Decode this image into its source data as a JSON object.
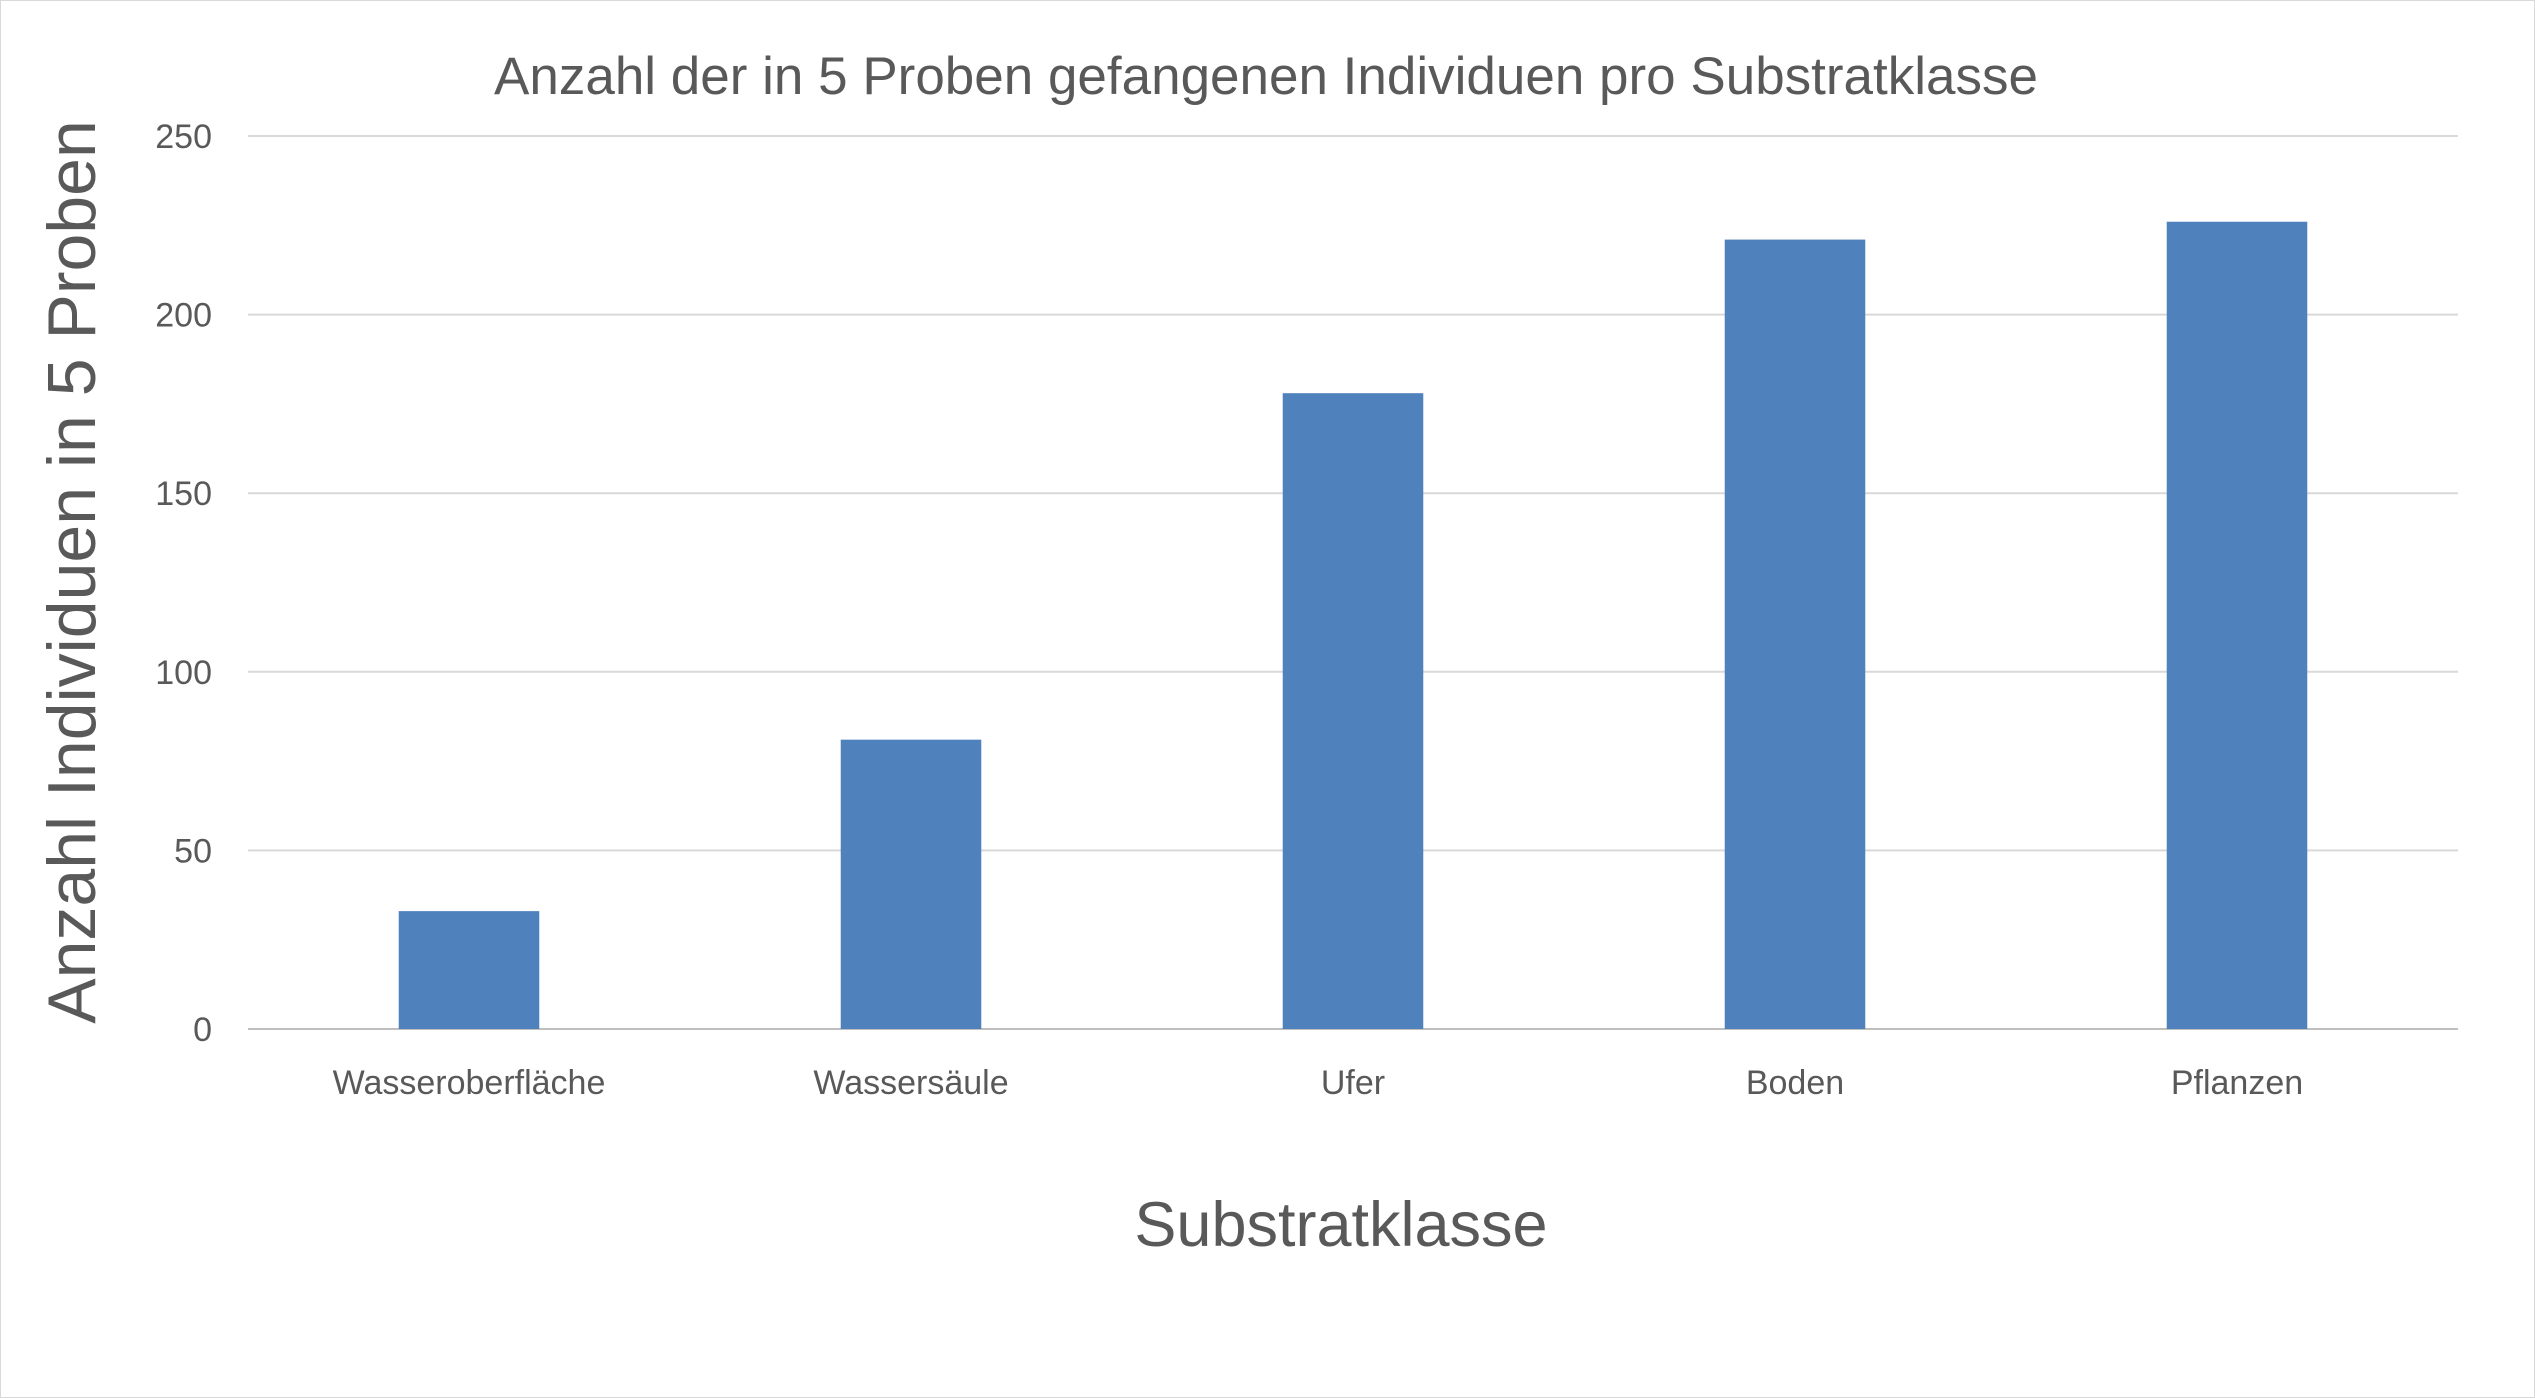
{
  "chart_data": {
    "type": "bar",
    "title": "Anzahl der in 5 Proben gefangenen Individuen pro Substratklasse",
    "xlabel": "Substratklasse",
    "ylabel": "Anzahl Individuen in 5 Proben",
    "categories": [
      "Wasseroberfläche",
      "Wassersäule",
      "Ufer",
      "Boden",
      "Pflanzen"
    ],
    "values": [
      33,
      81,
      178,
      221,
      226
    ],
    "ylim": [
      0,
      250
    ],
    "yticks": [
      0,
      50,
      100,
      150,
      200,
      250
    ],
    "grid": true,
    "legend": "none",
    "bar_color": "#4F81BD"
  }
}
